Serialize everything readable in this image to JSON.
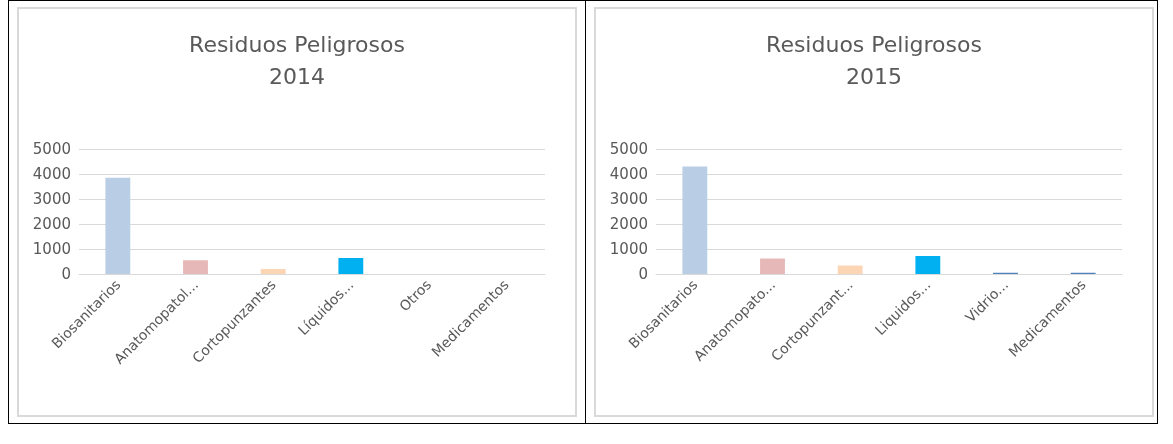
{
  "chart_data": [
    {
      "type": "bar",
      "title": "Residuos Peligrosos\n2014",
      "categories": [
        "Biosanitarios",
        "Anatomopatol...",
        "Cortopunzantes",
        "Líquidos...",
        "Otros",
        "Medicamentos"
      ],
      "values": [
        3850,
        550,
        200,
        640,
        0,
        0
      ],
      "colors": [
        "#b9cde5",
        "#e6b9b8",
        "#fcd5b5",
        "#00b0f0",
        "#4f81bd",
        "#4f81bd"
      ],
      "ylim": [
        0,
        5000
      ],
      "yticks": [
        0,
        1000,
        2000,
        3000,
        4000,
        5000
      ],
      "grid": "y"
    },
    {
      "type": "bar",
      "title": "Residuos Peligrosos\n2015",
      "categories": [
        "Biosanitarios",
        "Anatomopato...",
        "Cortopunzant...",
        "Liquidos...",
        "Vidrio...",
        "Medicamentos"
      ],
      "values": [
        4300,
        620,
        340,
        720,
        50,
        50
      ],
      "colors": [
        "#b9cde5",
        "#e6b9b8",
        "#fcd5b5",
        "#00b0f0",
        "#4f81bd",
        "#4f81bd"
      ],
      "ylim": [
        0,
        5000
      ],
      "yticks": [
        0,
        1000,
        2000,
        3000,
        4000,
        5000
      ],
      "grid": "y"
    }
  ]
}
